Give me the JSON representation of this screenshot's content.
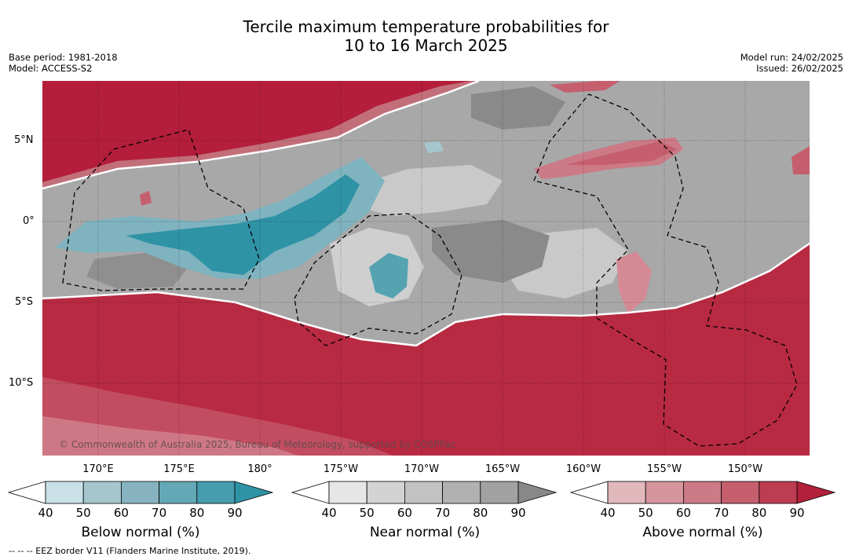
{
  "title_line1": "Tercile maximum temperature probabilities for",
  "title_line2": "10 to 16 March 2025",
  "base_period": "Base period: 1981-2018",
  "model": "Model: ACCESS-S2",
  "model_run": "Model run: 24/02/2025",
  "issued": "Issued: 26/02/2025",
  "copyright": "© Commonwealth of Australia 2025, Bureau of Meteorology, supported by COSPPac",
  "footnote": "--  --  -- EEZ border V11 (Flanders Marine Institute, 2019).",
  "lat_labels": [
    "5°N",
    "0°",
    "5°S",
    "10°S"
  ],
  "lon_labels": [
    "170°E",
    "175°E",
    "180°",
    "175°W",
    "170°W",
    "165°W",
    "160°W",
    "155°W",
    "150°W"
  ],
  "colorbars": [
    {
      "title": "Below normal (%)",
      "ticks": [
        "40",
        "50",
        "60",
        "70",
        "80",
        "90"
      ],
      "colors": [
        "#ffffff",
        "#c8e0e6",
        "#a5c6cc",
        "#86b3bf",
        "#64a7b5",
        "#469dad",
        "#2f93a6"
      ]
    },
    {
      "title": "Near normal (%)",
      "ticks": [
        "40",
        "50",
        "60",
        "70",
        "80",
        "90"
      ],
      "colors": [
        "#ffffff",
        "#e6e6e6",
        "#d3d3d3",
        "#c2c2c2",
        "#b1b1b1",
        "#a2a2a2",
        "#888888"
      ]
    },
    {
      "title": "Above normal (%)",
      "ticks": [
        "40",
        "50",
        "60",
        "70",
        "80",
        "90"
      ],
      "colors": [
        "#ffffff",
        "#e1b8bc",
        "#d6959d",
        "#cc7a86",
        "#c55f6e",
        "#bc3c51",
        "#b2203a"
      ]
    }
  ]
}
